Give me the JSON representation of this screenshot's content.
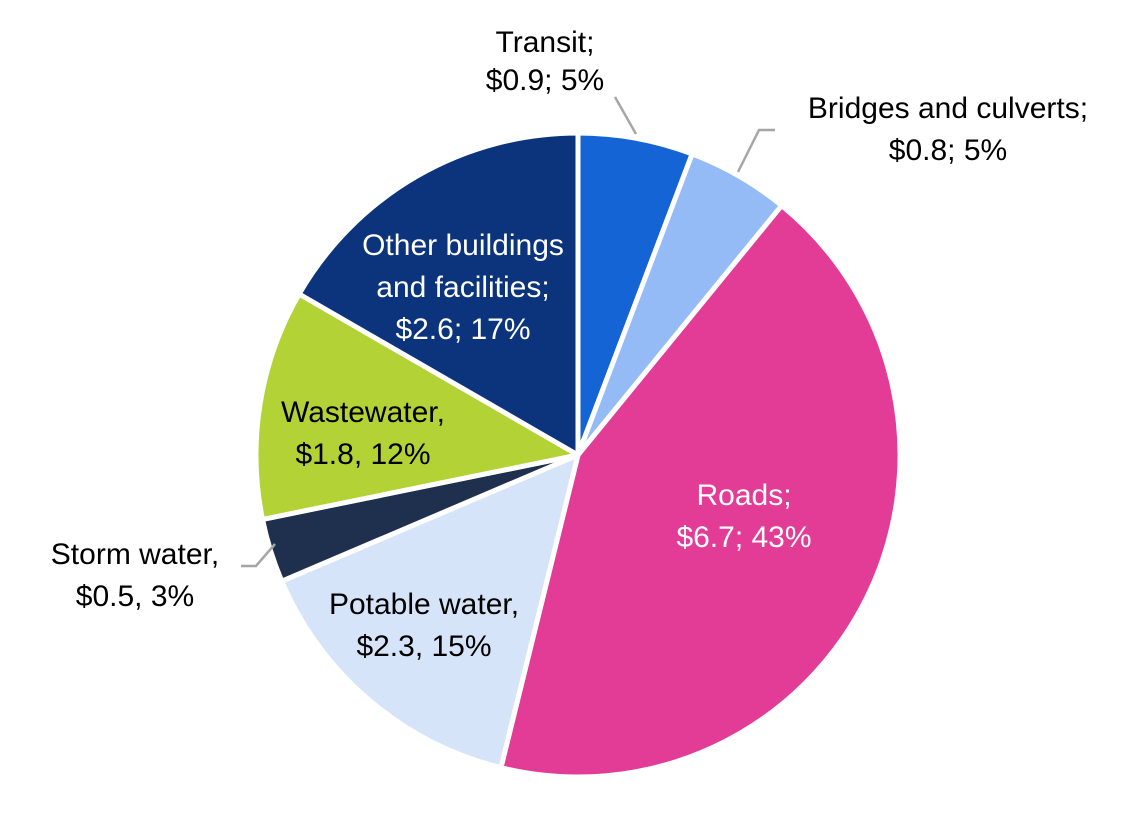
{
  "chart_data": {
    "type": "pie",
    "title": "",
    "unit": "$",
    "slices": [
      {
        "name": "Transit",
        "value": 0.9,
        "percent": 5,
        "color": "#1464d6",
        "text_color": "#000000",
        "label_lines": [
          "Transit;",
          "$0.9; 5%"
        ]
      },
      {
        "name": "Bridges and culverts",
        "value": 0.8,
        "percent": 5,
        "color": "#94bbf5",
        "text_color": "#000000",
        "label_lines": [
          "Bridges and culverts;",
          "$0.8; 5%"
        ]
      },
      {
        "name": "Roads",
        "value": 6.7,
        "percent": 43,
        "color": "#e23c96",
        "text_color": "#ffffff",
        "label_lines": [
          "Roads;",
          "$6.7; 43%"
        ]
      },
      {
        "name": "Potable water",
        "value": 2.3,
        "percent": 15,
        "color": "#d6e4fa",
        "text_color": "#000000",
        "label_lines": [
          "Potable water,",
          "$2.3, 15%"
        ]
      },
      {
        "name": "Storm water",
        "value": 0.5,
        "percent": 3,
        "color": "#1f2f4e",
        "text_color": "#000000",
        "label_lines": [
          "Storm water,",
          "$0.5, 3%"
        ]
      },
      {
        "name": "Wastewater",
        "value": 1.8,
        "percent": 12,
        "color": "#b2d235",
        "text_color": "#000000",
        "label_lines": [
          "Wastewater,",
          "$1.8, 12%"
        ]
      },
      {
        "name": "Other buildings and facilities",
        "value": 2.6,
        "percent": 17,
        "color": "#0b347c",
        "text_color": "#ffffff",
        "label_lines": [
          "Other buildings",
          "and facilities;",
          "$2.6; 17%"
        ]
      }
    ],
    "leader_line_color": "#a6a6a6"
  }
}
